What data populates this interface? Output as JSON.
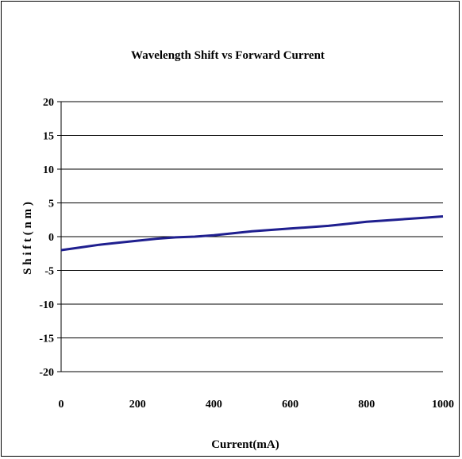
{
  "chart_data": {
    "type": "line",
    "title": "Wavelength Shift vs Forward Current",
    "xlabel": "Current(mA)",
    "ylabel": "S h i f t ( n m )",
    "xlim": [
      0,
      1000
    ],
    "ylim": [
      -20,
      20
    ],
    "x_ticks": [
      0,
      200,
      400,
      600,
      800,
      1000
    ],
    "y_ticks": [
      20,
      15,
      10,
      5,
      0,
      -5,
      -10,
      -15,
      -20
    ],
    "x_tick_labels": [
      "0",
      "200",
      "400",
      "600",
      "800",
      "1000"
    ],
    "y_tick_labels": [
      "20",
      "15",
      "10",
      "5",
      "0",
      "-5",
      "-10",
      "-15",
      "-20"
    ],
    "grid": true,
    "legend": "none",
    "series": [
      {
        "color": "#1f1f8f",
        "x": [
          0,
          50,
          100,
          150,
          200,
          250,
          300,
          350,
          400,
          450,
          500,
          550,
          600,
          650,
          700,
          750,
          800,
          850,
          900,
          950,
          1000
        ],
        "y": [
          -2.0,
          -1.6,
          -1.2,
          -0.9,
          -0.6,
          -0.3,
          -0.1,
          0.0,
          0.2,
          0.5,
          0.8,
          1.0,
          1.2,
          1.4,
          1.6,
          1.9,
          2.2,
          2.4,
          2.6,
          2.8,
          3.0
        ]
      }
    ]
  }
}
